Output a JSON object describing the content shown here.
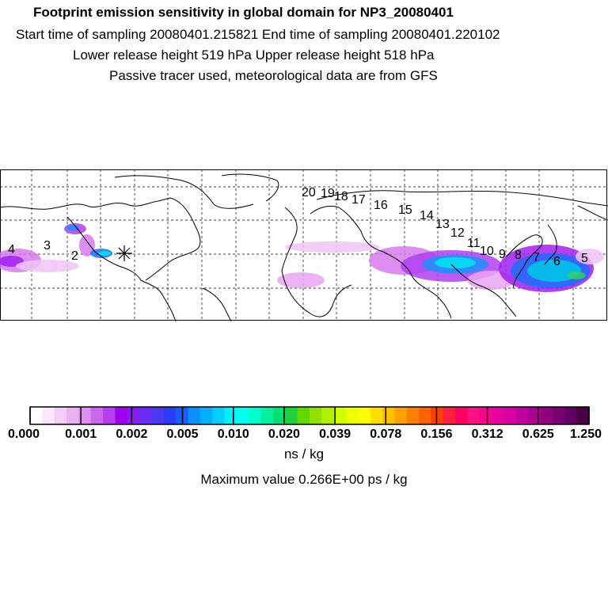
{
  "header": {
    "title": "Footprint emission sensitivity in global domain for NP3_20080401",
    "sampling_line": "Start time of sampling 20080401.215821     End time of sampling 20080401.220102",
    "height_line": "Lower release height  519 hPa       Upper release height  518 hPa",
    "tracer_line": "Passive tracer used, meteorological data are from GFS"
  },
  "map": {
    "trajectory_labels": [
      "2",
      "3",
      "4",
      "5",
      "6",
      "7",
      "8",
      "9",
      "10",
      "11",
      "12",
      "13",
      "14",
      "15",
      "16",
      "17",
      "18",
      "19",
      "20"
    ],
    "release_marker": "asterisk-marker",
    "colors": {
      "low": "#e8a6f2",
      "mid": "#a020f0",
      "blue": "#1e90ff",
      "cyan": "#00e5ee",
      "green": "#33cc66"
    }
  },
  "colorbar": {
    "tick_labels": [
      "0.000",
      "0.001",
      "0.002",
      "0.005",
      "0.010",
      "0.020",
      "0.039",
      "0.078",
      "0.156",
      "0.312",
      "0.625",
      "1.250"
    ],
    "colors": [
      "#ffffff",
      "#fbe6fb",
      "#f3cdf6",
      "#e9b0f2",
      "#dd90ee",
      "#cc66ee",
      "#b83ff0",
      "#a000f0",
      "#8a1cf0",
      "#6a2cf0",
      "#4a3af2",
      "#2a3cf8",
      "#1a5cff",
      "#0a90ff",
      "#00b0ff",
      "#00cfff",
      "#00f0ff",
      "#00ffee",
      "#00ffcc",
      "#00f0a0",
      "#00e070",
      "#20d040",
      "#60d800",
      "#90e000",
      "#b0f000",
      "#d0ff00",
      "#f0ff00",
      "#ffff00",
      "#ffe000",
      "#ffc000",
      "#ffa000",
      "#ff8000",
      "#ff6000",
      "#ff4000",
      "#ff2040",
      "#ff0060",
      "#ff1080",
      "#ff0090",
      "#e800a0",
      "#d800a0",
      "#c000a0",
      "#a80090",
      "#900080",
      "#780070",
      "#600060",
      "#480040"
    ],
    "unit": "ns / kg"
  },
  "footer": {
    "max_value": "Maximum value  0.266E+00 ps / kg"
  }
}
